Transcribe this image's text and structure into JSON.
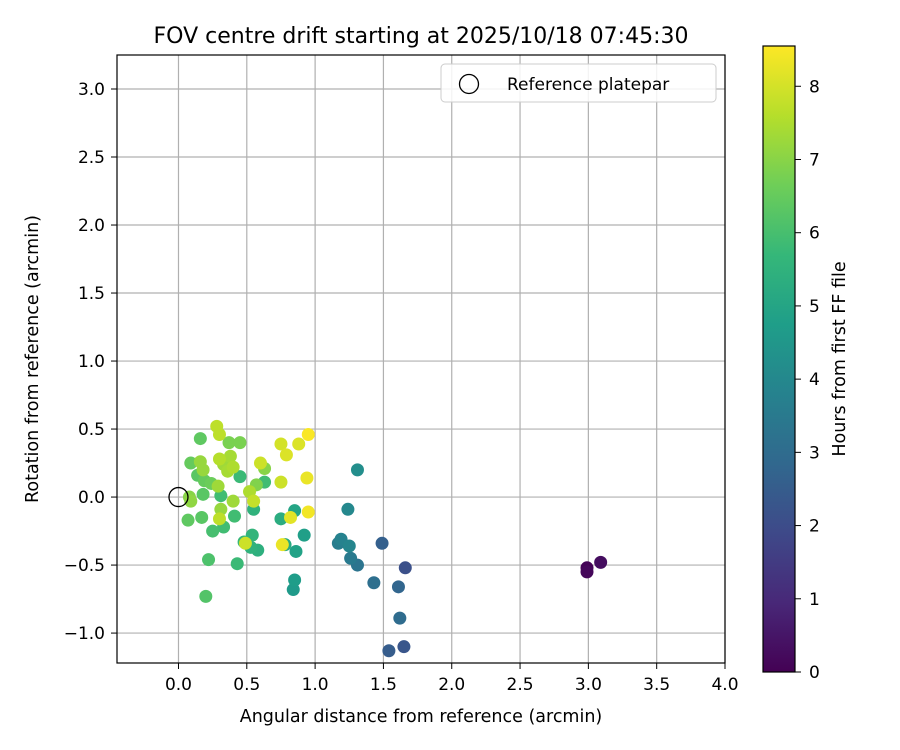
{
  "chart_data": {
    "type": "scatter",
    "title": "FOV centre drift starting at 2025/10/18 07:45:30",
    "xlabel": "Angular distance from reference (arcmin)",
    "ylabel": "Rotation from reference (arcmin)",
    "xlim": [
      -0.45,
      4.0
    ],
    "ylim": [
      -1.22,
      3.25
    ],
    "xticks": [
      0.0,
      0.5,
      1.0,
      1.5,
      2.0,
      2.5,
      3.0,
      3.5,
      4.0
    ],
    "xtick_labels": [
      "0.0",
      "0.5",
      "1.0",
      "1.5",
      "2.0",
      "2.5",
      "3.0",
      "3.5",
      "4.0"
    ],
    "yticks": [
      -1.0,
      -0.5,
      0.0,
      0.5,
      1.0,
      1.5,
      2.0,
      2.5,
      3.0
    ],
    "ytick_labels": [
      "−1.0",
      "−0.5",
      "0.0",
      "0.5",
      "1.0",
      "1.5",
      "2.0",
      "2.5",
      "3.0"
    ],
    "grid": true,
    "legend": {
      "position": "top-right",
      "entries": [
        "Reference platepar"
      ]
    },
    "reference_point": {
      "x": 0.0,
      "y": 0.0,
      "label": "Reference platepar"
    },
    "colorbar": {
      "label": "Hours from first FF file",
      "range": [
        0,
        8.55
      ],
      "ticks": [
        0,
        1,
        2,
        3,
        4,
        5,
        6,
        7,
        8
      ],
      "tick_labels": [
        "0",
        "1",
        "2",
        "3",
        "4",
        "5",
        "6",
        "7",
        "8"
      ],
      "colormap": "viridis",
      "colors": [
        "#440154",
        "#482878",
        "#3e4989",
        "#31688e",
        "#26828e",
        "#1f9e89",
        "#35b779",
        "#6ece58",
        "#b5de2b",
        "#fde725"
      ]
    },
    "points": [
      {
        "x": 2.99,
        "y": -0.52,
        "h": 0.05
      },
      {
        "x": 2.99,
        "y": -0.55,
        "h": 0.15
      },
      {
        "x": 3.09,
        "y": -0.48,
        "h": 0.3
      },
      {
        "x": 1.65,
        "y": -1.1,
        "h": 2.3
      },
      {
        "x": 1.54,
        "y": -1.13,
        "h": 2.5
      },
      {
        "x": 1.66,
        "y": -0.52,
        "h": 2.1
      },
      {
        "x": 1.49,
        "y": -0.34,
        "h": 2.6
      },
      {
        "x": 1.61,
        "y": -0.66,
        "h": 2.8
      },
      {
        "x": 1.62,
        "y": -0.89,
        "h": 3.0
      },
      {
        "x": 1.43,
        "y": -0.63,
        "h": 3.1
      },
      {
        "x": 1.31,
        "y": -0.5,
        "h": 3.3
      },
      {
        "x": 1.26,
        "y": -0.45,
        "h": 3.5
      },
      {
        "x": 1.17,
        "y": -0.34,
        "h": 3.6
      },
      {
        "x": 1.19,
        "y": -0.31,
        "h": 3.8
      },
      {
        "x": 1.25,
        "y": -0.36,
        "h": 3.9
      },
      {
        "x": 1.24,
        "y": -0.09,
        "h": 4.0
      },
      {
        "x": 1.31,
        "y": 0.2,
        "h": 4.2
      },
      {
        "x": 0.84,
        "y": -0.68,
        "h": 4.6
      },
      {
        "x": 0.85,
        "y": -0.61,
        "h": 4.7
      },
      {
        "x": 0.92,
        "y": -0.28,
        "h": 4.8
      },
      {
        "x": 0.86,
        "y": -0.4,
        "h": 4.9
      },
      {
        "x": 0.85,
        "y": -0.1,
        "h": 5.0
      },
      {
        "x": 0.75,
        "y": -0.16,
        "h": 5.3
      },
      {
        "x": 0.78,
        "y": -0.35,
        "h": 5.2
      },
      {
        "x": 0.58,
        "y": -0.39,
        "h": 5.4
      },
      {
        "x": 0.53,
        "y": -0.37,
        "h": 5.5
      },
      {
        "x": 0.54,
        "y": -0.28,
        "h": 5.6
      },
      {
        "x": 0.55,
        "y": -0.09,
        "h": 5.5
      },
      {
        "x": 0.48,
        "y": -0.33,
        "h": 5.7
      },
      {
        "x": 0.43,
        "y": -0.49,
        "h": 5.8
      },
      {
        "x": 0.41,
        "y": -0.14,
        "h": 5.9
      },
      {
        "x": 0.33,
        "y": -0.22,
        "h": 5.9
      },
      {
        "x": 0.25,
        "y": -0.25,
        "h": 6.0
      },
      {
        "x": 0.22,
        "y": -0.46,
        "h": 6.1
      },
      {
        "x": 0.2,
        "y": -0.73,
        "h": 6.2
      },
      {
        "x": 0.31,
        "y": 0.01,
        "h": 5.9
      },
      {
        "x": 0.45,
        "y": 0.15,
        "h": 5.8
      },
      {
        "x": 0.63,
        "y": 0.11,
        "h": 5.9
      },
      {
        "x": 0.17,
        "y": -0.15,
        "h": 6.3
      },
      {
        "x": 0.07,
        "y": -0.17,
        "h": 6.4
      },
      {
        "x": 0.18,
        "y": 0.02,
        "h": 6.3
      },
      {
        "x": 0.16,
        "y": 0.43,
        "h": 6.4
      },
      {
        "x": 0.09,
        "y": 0.25,
        "h": 6.5
      },
      {
        "x": 0.14,
        "y": 0.16,
        "h": 6.3
      },
      {
        "x": 0.19,
        "y": 0.12,
        "h": 6.5
      },
      {
        "x": 0.24,
        "y": 0.1,
        "h": 6.6
      },
      {
        "x": 0.37,
        "y": 0.4,
        "h": 6.8
      },
      {
        "x": 0.45,
        "y": 0.4,
        "h": 6.8
      },
      {
        "x": 0.57,
        "y": 0.09,
        "h": 6.9
      },
      {
        "x": 0.63,
        "y": 0.21,
        "h": 7.0
      },
      {
        "x": 0.08,
        "y": 0.0,
        "h": 7.0
      },
      {
        "x": 0.09,
        "y": -0.03,
        "h": 7.1
      },
      {
        "x": 0.18,
        "y": 0.2,
        "h": 7.2
      },
      {
        "x": 0.16,
        "y": 0.26,
        "h": 7.2
      },
      {
        "x": 0.29,
        "y": 0.08,
        "h": 7.3
      },
      {
        "x": 0.31,
        "y": -0.09,
        "h": 7.2
      },
      {
        "x": 0.33,
        "y": 0.24,
        "h": 7.3
      },
      {
        "x": 0.38,
        "y": 0.3,
        "h": 7.4
      },
      {
        "x": 0.4,
        "y": -0.03,
        "h": 7.3
      },
      {
        "x": 0.36,
        "y": 0.19,
        "h": 7.4
      },
      {
        "x": 0.4,
        "y": 0.22,
        "h": 7.5
      },
      {
        "x": 0.52,
        "y": 0.04,
        "h": 7.5
      },
      {
        "x": 0.3,
        "y": 0.28,
        "h": 7.6
      },
      {
        "x": 0.28,
        "y": 0.52,
        "h": 7.7
      },
      {
        "x": 0.3,
        "y": 0.46,
        "h": 7.7
      },
      {
        "x": 0.3,
        "y": -0.16,
        "h": 7.7
      },
      {
        "x": 0.55,
        "y": -0.03,
        "h": 7.8
      },
      {
        "x": 0.49,
        "y": -0.34,
        "h": 7.9
      },
      {
        "x": 0.6,
        "y": 0.25,
        "h": 7.9
      },
      {
        "x": 0.75,
        "y": 0.11,
        "h": 7.9
      },
      {
        "x": 0.75,
        "y": 0.39,
        "h": 8.0
      },
      {
        "x": 0.79,
        "y": 0.31,
        "h": 8.1
      },
      {
        "x": 0.88,
        "y": 0.39,
        "h": 8.1
      },
      {
        "x": 0.82,
        "y": -0.15,
        "h": 8.2
      },
      {
        "x": 0.76,
        "y": -0.35,
        "h": 8.3
      },
      {
        "x": 0.94,
        "y": 0.14,
        "h": 8.3
      },
      {
        "x": 0.95,
        "y": -0.11,
        "h": 8.4
      },
      {
        "x": 0.95,
        "y": 0.46,
        "h": 8.5
      }
    ]
  }
}
